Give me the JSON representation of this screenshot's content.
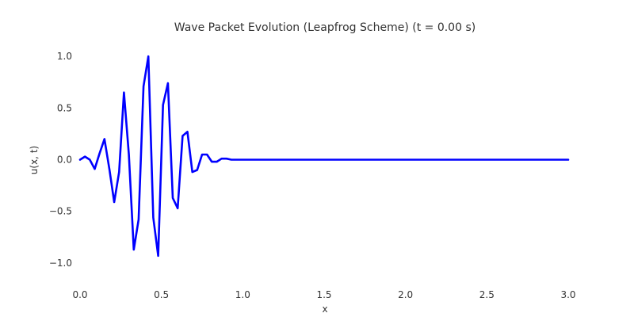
{
  "chart_data": {
    "type": "line",
    "title": "Wave Packet Evolution (Leapfrog Scheme) (t = 0.00 s)",
    "xlabel": "x",
    "ylabel": "u(x, t)",
    "xlim": [
      0,
      3
    ],
    "ylim": [
      -1.2,
      1.2
    ],
    "x_ticks": [
      "0.0",
      "0.5",
      "1.0",
      "1.5",
      "2.0",
      "2.5",
      "3.0"
    ],
    "y_ticks": [
      "1.0",
      "0.5",
      "0.0",
      "−0.5",
      "−1.0"
    ],
    "grid": false,
    "series": [
      {
        "color": "#0000ff",
        "x": [
          0.0,
          0.03,
          0.06,
          0.09,
          0.12,
          0.15,
          0.18,
          0.21,
          0.24,
          0.27,
          0.3,
          0.33,
          0.36,
          0.39,
          0.42,
          0.45,
          0.48,
          0.51,
          0.54,
          0.57,
          0.6,
          0.63,
          0.66,
          0.69,
          0.72,
          0.75,
          0.78,
          0.81,
          0.84,
          0.87,
          0.9,
          0.93,
          0.96,
          0.99,
          1.02,
          1.05,
          1.08,
          1.11,
          1.14,
          1.17,
          1.2,
          1.5,
          2.0,
          2.5,
          3.0
        ],
        "y": [
          0.0,
          0.03,
          0.0,
          -0.09,
          0.06,
          0.2,
          -0.09,
          -0.41,
          -0.12,
          0.65,
          0.05,
          -0.87,
          -0.58,
          0.71,
          1.0,
          -0.56,
          -0.93,
          0.53,
          0.74,
          -0.37,
          -0.47,
          0.23,
          0.27,
          -0.12,
          -0.1,
          0.05,
          0.05,
          -0.02,
          -0.02,
          0.01,
          0.01,
          0.0,
          0.0,
          0.0,
          0.0,
          0.0,
          0.0,
          0.0,
          0.0,
          0.0,
          0.0,
          0.0,
          0.0,
          0.0,
          0.0
        ]
      }
    ]
  }
}
